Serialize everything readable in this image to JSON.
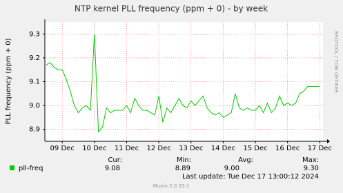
{
  "chart_data": {
    "type": "line",
    "title": "NTP kernel PLL frequency (ppm + 0) - by week",
    "y_label": "PLL frequency (ppm + 0)",
    "side_text": "RRDTOOL / TOBI OETIKER",
    "x": [
      8.5,
      8.625,
      8.75,
      8.875,
      9,
      9.125,
      9.25,
      9.375,
      9.5,
      9.625,
      9.75,
      9.875,
      10,
      10.125,
      10.25,
      10.375,
      10.5,
      10.625,
      10.75,
      10.875,
      11,
      11.125,
      11.25,
      11.375,
      11.5,
      11.625,
      11.75,
      11.875,
      12,
      12.125,
      12.25,
      12.375,
      12.5,
      12.625,
      12.75,
      12.875,
      13,
      13.125,
      13.25,
      13.375,
      13.5,
      13.625,
      13.75,
      13.875,
      14,
      14.125,
      14.25,
      14.375,
      14.5,
      14.625,
      14.75,
      14.875,
      15,
      15.125,
      15.25,
      15.375,
      15.5,
      15.625,
      15.75,
      15.875,
      16,
      16.125,
      16.25,
      16.375,
      16.5,
      16.625,
      16.75,
      16.875,
      17
    ],
    "series": [
      {
        "name": "pll-freq",
        "color": "#00cc00",
        "values": [
          9.17,
          9.18,
          9.16,
          9.15,
          9.15,
          9.11,
          9.06,
          9.0,
          8.97,
          8.99,
          9.0,
          8.98,
          9.3,
          8.89,
          8.91,
          8.99,
          8.97,
          8.98,
          8.98,
          8.98,
          9.0,
          8.97,
          9.03,
          9.0,
          8.98,
          8.98,
          8.97,
          8.96,
          9.04,
          8.93,
          8.99,
          8.97,
          9.0,
          9.03,
          9.0,
          8.99,
          9.02,
          9.0,
          9.02,
          9.04,
          8.99,
          8.97,
          8.96,
          8.97,
          8.95,
          8.96,
          8.97,
          9.05,
          8.99,
          8.98,
          8.99,
          8.98,
          8.98,
          9.0,
          8.97,
          9.01,
          8.97,
          8.99,
          9.04,
          9.0,
          9.01,
          9.0,
          9.01,
          9.05,
          9.06,
          9.08,
          9.08,
          9.08,
          9.08
        ]
      }
    ],
    "xlim": [
      8.46,
      17.1
    ],
    "xticks": [
      {
        "value": 9,
        "label": "09 Dec"
      },
      {
        "value": 10,
        "label": "10 Dec"
      },
      {
        "value": 11,
        "label": "11 Dec"
      },
      {
        "value": 12,
        "label": "12 Dec"
      },
      {
        "value": 13,
        "label": "13 Dec"
      },
      {
        "value": 14,
        "label": "14 Dec"
      },
      {
        "value": 15,
        "label": "15 Dec"
      },
      {
        "value": 16,
        "label": "16 Dec"
      },
      {
        "value": 17,
        "label": "17 Dec"
      }
    ],
    "ylim": [
      8.85,
      9.35
    ],
    "yticks": [
      8.9,
      {
        "value": 9,
        "label": "9.0"
      },
      9.1,
      9.2,
      9.3
    ],
    "grid": true,
    "summary": {
      "headers": [
        "Cur:",
        "Min:",
        "Avg:",
        "Max:"
      ],
      "cells": [
        "9.08",
        "8.89",
        "9.00",
        "9.30"
      ]
    },
    "last_update": "Last update:  Tue Dec 17 13:00:12 2024",
    "version": "Munin 2.0.33-1"
  }
}
